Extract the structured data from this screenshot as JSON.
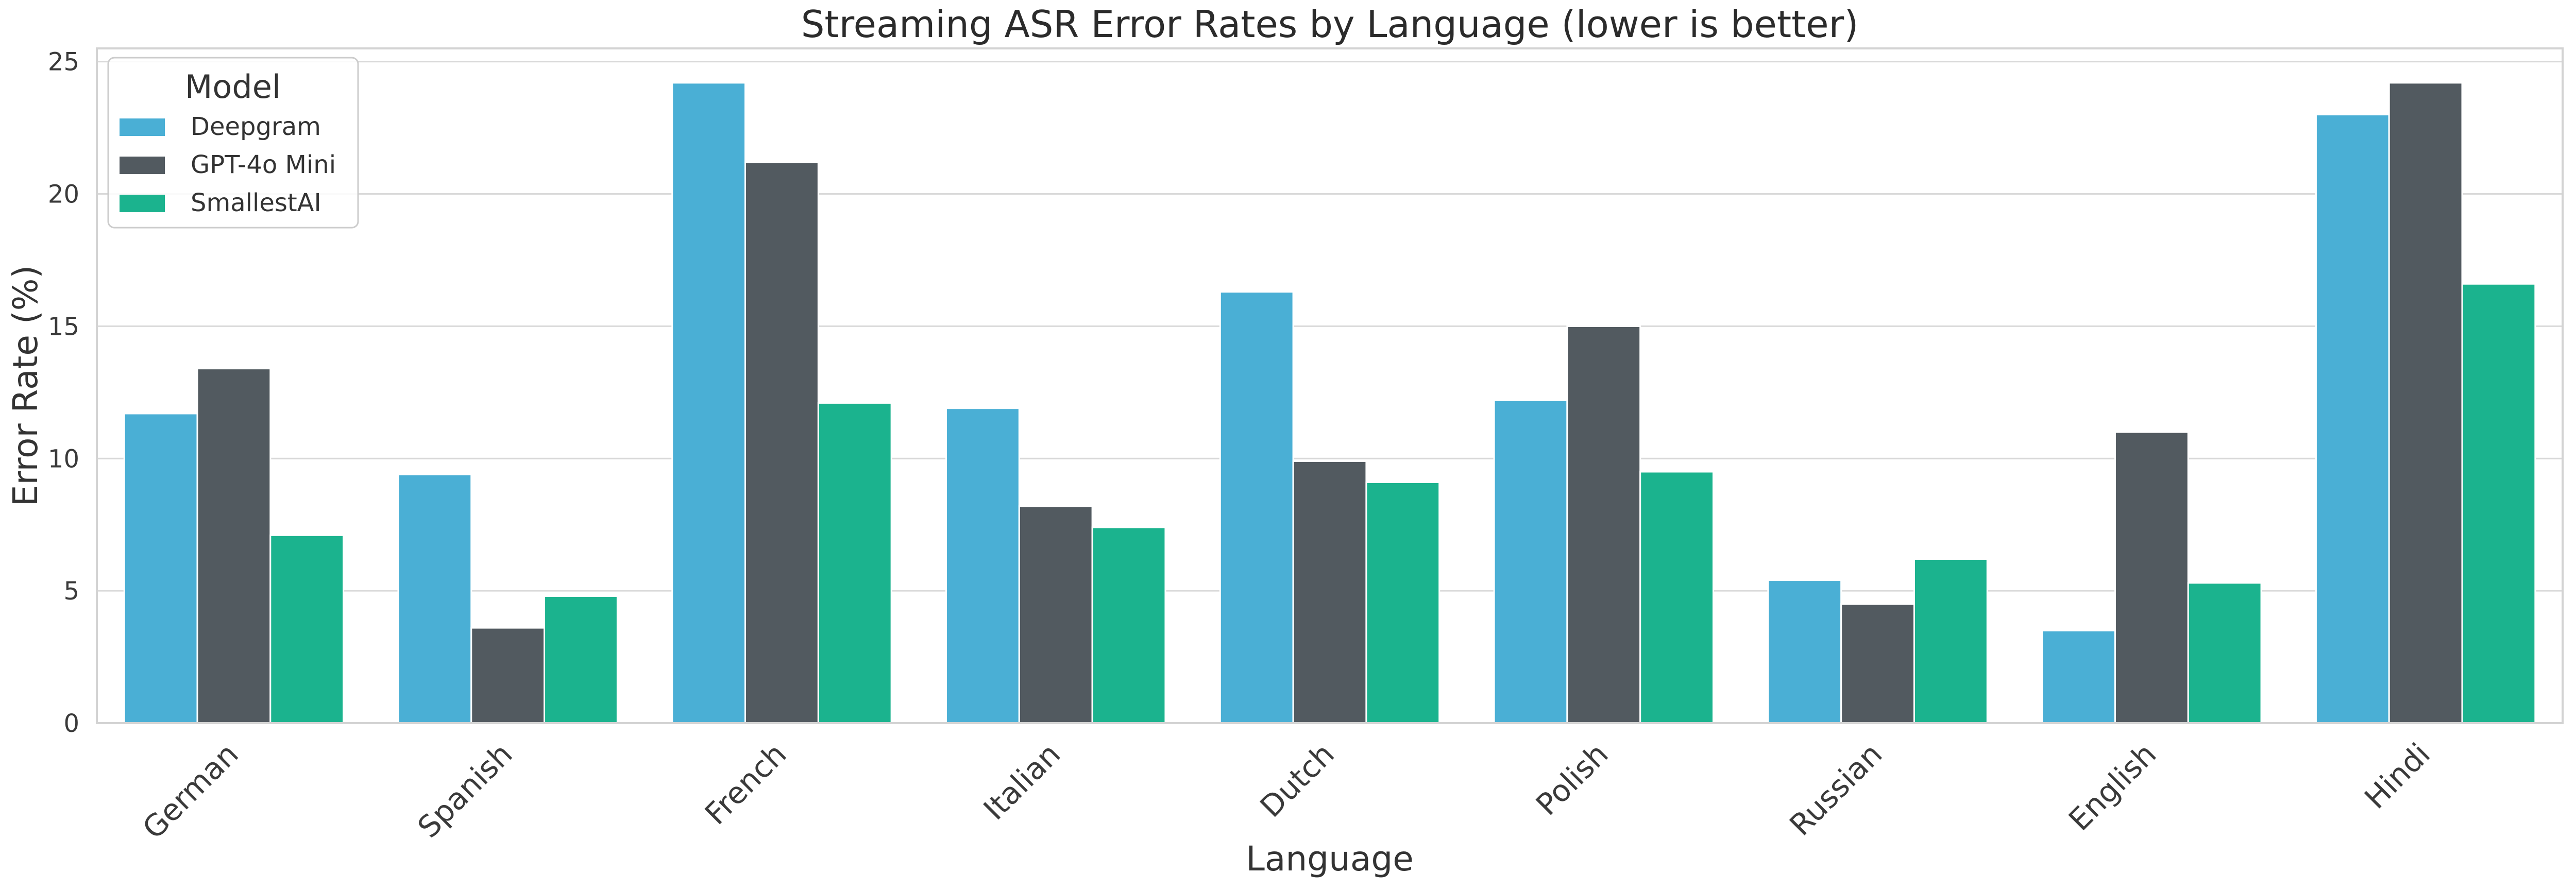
{
  "chart_data": {
    "type": "bar",
    "title": "Streaming ASR Error Rates by Language (lower is better)",
    "xlabel": "Language",
    "ylabel": "Error Rate (%)",
    "ylim": [
      0,
      25.5
    ],
    "yticks": [
      "0",
      "5",
      "10",
      "15",
      "20",
      "25"
    ],
    "grid": true,
    "legend": {
      "title": "Model",
      "position": "top-left"
    },
    "categories": [
      "German",
      "Spanish",
      "French",
      "Italian",
      "Dutch",
      "Polish",
      "Russian",
      "English",
      "Hindi"
    ],
    "series": [
      {
        "name": "Deepgram",
        "color": "#4aafd5",
        "values": [
          11.7,
          9.4,
          24.2,
          11.9,
          16.3,
          12.2,
          5.4,
          3.5,
          23.0
        ]
      },
      {
        "name": "GPT-4o Mini",
        "color": "#525a60",
        "values": [
          13.4,
          3.6,
          21.2,
          8.2,
          9.9,
          15.0,
          4.5,
          11.0,
          24.2
        ]
      },
      {
        "name": "SmallestAI",
        "color": "#1bb38e",
        "values": [
          7.1,
          4.8,
          12.1,
          7.4,
          9.1,
          9.5,
          6.2,
          5.3,
          16.6
        ]
      }
    ]
  }
}
